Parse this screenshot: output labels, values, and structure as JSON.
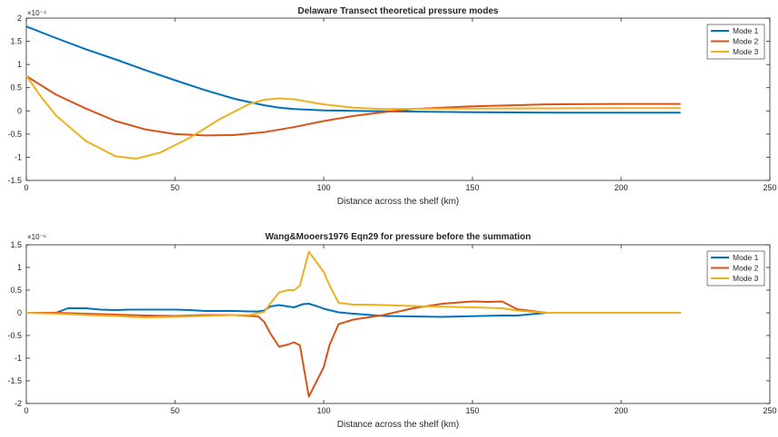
{
  "chart_data": [
    {
      "type": "line",
      "title": "Delaware Transect theoretical pressure modes",
      "xlabel": "Distance across the shelf (km)",
      "ylabel": "",
      "y_exponent": "×10⁻⁴",
      "xlim": [
        0,
        250
      ],
      "ylim": [
        -1.5,
        2
      ],
      "xticks": [
        0,
        50,
        100,
        150,
        200,
        250
      ],
      "yticks": [
        -1.5,
        -1,
        -0.5,
        0,
        0.5,
        1,
        1.5,
        2
      ],
      "legend": "top-right",
      "series": [
        {
          "name": "Mode 1",
          "color": "#0072BD",
          "x": [
            0,
            10,
            20,
            30,
            40,
            50,
            60,
            70,
            80,
            85,
            90,
            100,
            110,
            120,
            150,
            180,
            220
          ],
          "y": [
            1.82,
            1.57,
            1.33,
            1.11,
            0.88,
            0.66,
            0.45,
            0.26,
            0.12,
            0.07,
            0.04,
            0.01,
            0.0,
            -0.01,
            -0.03,
            -0.04,
            -0.04
          ]
        },
        {
          "name": "Mode 2",
          "color": "#D95319",
          "x": [
            0,
            10,
            20,
            30,
            40,
            50,
            60,
            70,
            80,
            90,
            100,
            110,
            120,
            130,
            150,
            175,
            200,
            220
          ],
          "y": [
            0.75,
            0.35,
            0.05,
            -0.22,
            -0.4,
            -0.5,
            -0.53,
            -0.52,
            -0.46,
            -0.35,
            -0.22,
            -0.11,
            -0.03,
            0.04,
            0.1,
            0.14,
            0.15,
            0.15
          ]
        },
        {
          "name": "Mode 3",
          "color": "#EDB120",
          "x": [
            0,
            5,
            10,
            20,
            30,
            37,
            45,
            55,
            65,
            75,
            80,
            85,
            90,
            100,
            110,
            120,
            150,
            200,
            220
          ],
          "y": [
            0.76,
            0.3,
            -0.1,
            -0.65,
            -0.98,
            -1.03,
            -0.9,
            -0.58,
            -0.18,
            0.15,
            0.24,
            0.27,
            0.25,
            0.14,
            0.07,
            0.04,
            0.05,
            0.06,
            0.06
          ]
        }
      ]
    },
    {
      "type": "line",
      "title": "Wang&Mooers1976 Eqn29 for pressure before the summation",
      "xlabel": "Distance across the shelf (km)",
      "ylabel": "",
      "y_exponent": "×10⁻⁶",
      "xlim": [
        0,
        250
      ],
      "ylim": [
        -2,
        1.5
      ],
      "xticks": [
        0,
        50,
        100,
        150,
        200,
        250
      ],
      "yticks": [
        -2,
        -1.5,
        -1,
        -0.5,
        0,
        0.5,
        1,
        1.5
      ],
      "legend": "top-right",
      "series": [
        {
          "name": "Mode 1",
          "color": "#0072BD",
          "x": [
            0,
            10,
            14,
            20,
            25,
            30,
            35,
            40,
            50,
            55,
            60,
            70,
            75,
            78,
            80,
            82,
            85,
            88,
            90,
            93,
            95,
            98,
            100,
            105,
            110,
            120,
            140,
            160,
            165,
            175,
            220
          ],
          "y": [
            0.0,
            0.0,
            0.1,
            0.1,
            0.07,
            0.06,
            0.07,
            0.07,
            0.07,
            0.06,
            0.04,
            0.04,
            0.03,
            0.03,
            0.05,
            0.14,
            0.17,
            0.14,
            0.12,
            0.19,
            0.2,
            0.14,
            0.09,
            0.01,
            -0.02,
            -0.07,
            -0.09,
            -0.06,
            -0.06,
            0.0,
            0.0
          ]
        },
        {
          "name": "Mode 2",
          "color": "#D95319",
          "x": [
            0,
            10,
            20,
            30,
            40,
            50,
            60,
            70,
            75,
            78,
            80,
            82,
            85,
            88,
            90,
            92,
            95,
            100,
            102,
            105,
            110,
            115,
            120,
            130,
            140,
            150,
            155,
            160,
            165,
            175,
            220
          ],
          "y": [
            0.0,
            0.0,
            -0.02,
            -0.04,
            -0.06,
            -0.07,
            -0.05,
            -0.05,
            -0.07,
            -0.08,
            -0.2,
            -0.45,
            -0.75,
            -0.7,
            -0.65,
            -0.72,
            -1.85,
            -1.2,
            -0.7,
            -0.25,
            -0.15,
            -0.1,
            -0.05,
            0.1,
            0.2,
            0.25,
            0.24,
            0.25,
            0.08,
            0.0,
            0.0
          ]
        },
        {
          "name": "Mode 3",
          "color": "#EDB120",
          "x": [
            0,
            10,
            20,
            30,
            35,
            40,
            50,
            60,
            70,
            75,
            80,
            82,
            85,
            88,
            90,
            92,
            95,
            100,
            102,
            105,
            110,
            115,
            130,
            150,
            160,
            165,
            175,
            220
          ],
          "y": [
            0.0,
            -0.02,
            -0.05,
            -0.07,
            -0.09,
            -0.1,
            -0.09,
            -0.07,
            -0.05,
            -0.05,
            0.02,
            0.2,
            0.45,
            0.5,
            0.5,
            0.6,
            1.35,
            0.9,
            0.6,
            0.22,
            0.18,
            0.18,
            0.15,
            0.12,
            0.1,
            0.05,
            0.0,
            0.0
          ]
        }
      ]
    }
  ]
}
